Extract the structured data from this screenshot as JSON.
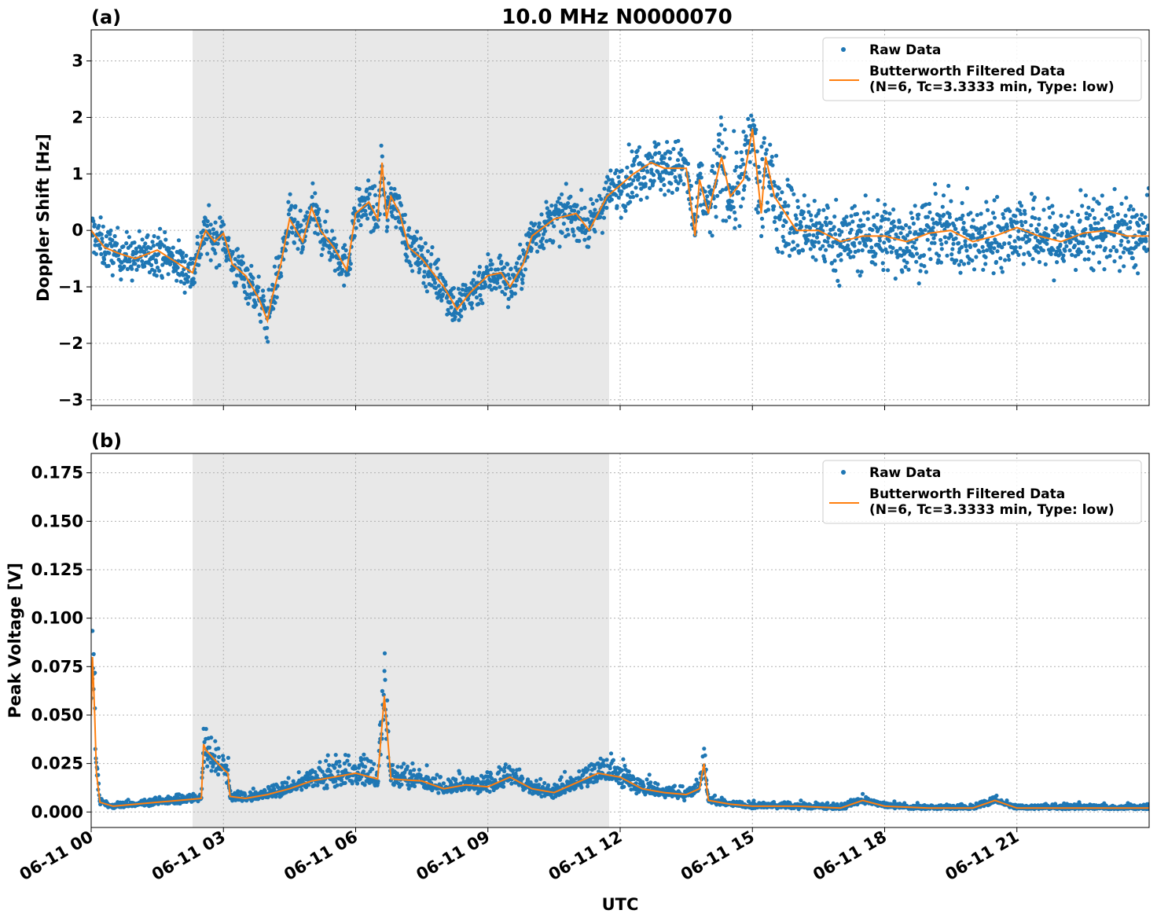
{
  "figure": {
    "title": "10.0 MHz N0000070",
    "xlabel": "UTC"
  },
  "chart_data": [
    {
      "type": "scatter",
      "panel_label": "(a)",
      "ylabel": "Doppler Shift [Hz]",
      "xlim_hours": [
        0,
        24
      ],
      "ylim": [
        -3.1,
        3.55
      ],
      "yticks": [
        -3,
        -2,
        -1,
        0,
        1,
        2,
        3
      ],
      "ytick_labels": [
        "−3",
        "−2",
        "−1",
        "0",
        "1",
        "2",
        "3"
      ],
      "xticks_hours": [
        0,
        3,
        6,
        9,
        12,
        15,
        18,
        21
      ],
      "xtick_labels": [
        "06-11 00",
        "06-11 03",
        "06-11 06",
        "06-11 09",
        "06-11 12",
        "06-11 15",
        "06-11 18",
        "06-11 21"
      ],
      "grid": true,
      "shaded_span_hours": [
        2.3,
        11.75
      ],
      "legend": {
        "placement": "upper right",
        "raw_label": "Raw Data",
        "filtered_label_line1": "Butterworth Filtered Data",
        "filtered_label_line2": "(N=6, Tc=3.3333 min, Type: low)"
      },
      "series": [
        {
          "name": "Butterworth Filtered Data",
          "x": [
            0,
            0.3,
            0.6,
            1.0,
            1.5,
            2.0,
            2.3,
            2.5,
            2.6,
            2.8,
            3.0,
            3.2,
            3.5,
            3.8,
            4.0,
            4.1,
            4.3,
            4.5,
            4.8,
            5.0,
            5.2,
            5.5,
            5.8,
            6.0,
            6.3,
            6.5,
            6.6,
            6.7,
            6.8,
            7.0,
            7.2,
            7.5,
            7.8,
            8.0,
            8.3,
            8.6,
            9.0,
            9.3,
            9.5,
            9.8,
            10.0,
            10.5,
            11.0,
            11.3,
            11.7,
            12.0,
            12.3,
            12.7,
            13.0,
            13.5,
            13.7,
            13.8,
            14.0,
            14.3,
            14.5,
            14.8,
            15.0,
            15.2,
            15.3,
            15.5,
            16.0,
            16.5,
            17.0,
            17.5,
            18.0,
            18.5,
            19.0,
            19.5,
            20.0,
            20.5,
            21.0,
            21.5,
            22.0,
            22.5,
            23.0,
            23.5,
            24.0
          ],
          "y": [
            0.0,
            -0.3,
            -0.4,
            -0.5,
            -0.35,
            -0.6,
            -0.75,
            -0.2,
            0.0,
            -0.2,
            -0.05,
            -0.6,
            -0.8,
            -1.2,
            -1.6,
            -1.2,
            -0.6,
            0.2,
            -0.2,
            0.4,
            0.0,
            -0.3,
            -0.7,
            0.3,
            0.5,
            0.2,
            1.2,
            0.2,
            0.6,
            0.3,
            -0.3,
            -0.5,
            -0.8,
            -1.0,
            -1.4,
            -1.1,
            -0.8,
            -0.75,
            -1.0,
            -0.6,
            -0.1,
            0.2,
            0.3,
            0.0,
            0.6,
            0.8,
            1.0,
            1.2,
            1.1,
            1.1,
            -0.1,
            0.9,
            0.3,
            1.3,
            0.6,
            0.9,
            1.8,
            0.3,
            1.3,
            0.6,
            0.0,
            0.0,
            -0.2,
            -0.1,
            -0.1,
            -0.2,
            -0.05,
            0.0,
            -0.2,
            -0.1,
            0.05,
            -0.1,
            -0.2,
            -0.05,
            0.0,
            -0.1,
            -0.1
          ]
        }
      ]
    },
    {
      "type": "scatter",
      "panel_label": "(b)",
      "ylabel": "Peak Voltage [V]",
      "xlim_hours": [
        0,
        24
      ],
      "ylim": [
        -0.008,
        0.185
      ],
      "yticks": [
        0.0,
        0.025,
        0.05,
        0.075,
        0.1,
        0.125,
        0.15,
        0.175
      ],
      "ytick_labels": [
        "0.000",
        "0.025",
        "0.050",
        "0.075",
        "0.100",
        "0.125",
        "0.150",
        "0.175"
      ],
      "xticks_hours": [
        0,
        3,
        6,
        9,
        12,
        15,
        18,
        21
      ],
      "xtick_labels": [
        "06-11 00",
        "06-11 03",
        "06-11 06",
        "06-11 09",
        "06-11 12",
        "06-11 15",
        "06-11 18",
        "06-11 21"
      ],
      "grid": true,
      "shaded_span_hours": [
        2.3,
        11.75
      ],
      "legend": {
        "placement": "upper right",
        "raw_label": "Raw Data",
        "filtered_label_line1": "Butterworth Filtered Data",
        "filtered_label_line2": "(N=6, Tc=3.3333 min, Type: low)"
      },
      "series": [
        {
          "name": "Butterworth Filtered Data",
          "x": [
            0,
            0.03,
            0.08,
            0.12,
            0.2,
            0.5,
            1.0,
            1.5,
            2.0,
            2.5,
            2.55,
            2.6,
            3.0,
            3.1,
            3.15,
            3.5,
            4.0,
            4.5,
            5.0,
            5.5,
            6.0,
            6.5,
            6.65,
            6.8,
            7.5,
            8.0,
            8.5,
            9.0,
            9.5,
            10.0,
            10.5,
            11.0,
            11.5,
            12.0,
            12.5,
            13.0,
            13.5,
            13.8,
            13.9,
            14.0,
            14.5,
            15.0,
            16.0,
            17.0,
            17.5,
            18.0,
            19.0,
            20.0,
            20.5,
            21.0,
            22.0,
            23.0,
            24.0
          ],
          "y": [
            0.05,
            0.08,
            0.05,
            0.02,
            0.005,
            0.003,
            0.004,
            0.005,
            0.006,
            0.007,
            0.035,
            0.032,
            0.022,
            0.02,
            0.008,
            0.007,
            0.009,
            0.012,
            0.016,
            0.018,
            0.02,
            0.017,
            0.06,
            0.017,
            0.016,
            0.012,
            0.014,
            0.013,
            0.018,
            0.012,
            0.01,
            0.015,
            0.02,
            0.018,
            0.012,
            0.01,
            0.009,
            0.012,
            0.025,
            0.006,
            0.004,
            0.003,
            0.003,
            0.002,
            0.006,
            0.003,
            0.002,
            0.002,
            0.006,
            0.002,
            0.002,
            0.002,
            0.002
          ]
        }
      ]
    }
  ],
  "colors": {
    "raw": "#1f77b4",
    "filtered": "#ff7f0e",
    "shade": "#e8e8e8",
    "grid": "#b0b0b0"
  }
}
